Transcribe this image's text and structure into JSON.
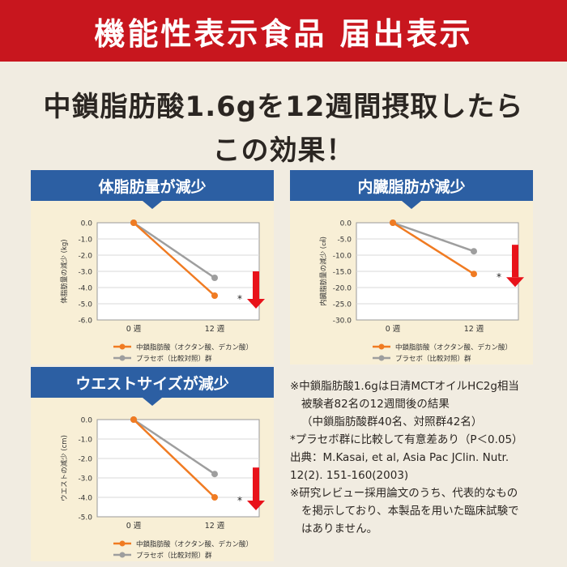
{
  "banner": {
    "title": "機能性表示食品 届出表示"
  },
  "headline": {
    "line1": "中鎖脂肪酸1.6gを12週間摂取したら",
    "line2": "この効果！"
  },
  "colors": {
    "banner": "#c8161e",
    "panel_header": "#2c5fa3",
    "mcfa": "#f07b22",
    "placebo": "#9e9e9e",
    "arrow": "#e8121a"
  },
  "chart_data": [
    {
      "type": "line",
      "title": "体脂肪量が減少",
      "ylabel": "体脂肪量の減少 (kg)",
      "ylim": [
        -6.0,
        0.0
      ],
      "yticks": [
        0.0,
        -1.0,
        -2.0,
        -3.0,
        -4.0,
        -5.0,
        -6.0
      ],
      "ytick_labels": [
        "0.0",
        "-1.0",
        "-2.0",
        "-3.0",
        "-4.0",
        "-5.0",
        "-6.0"
      ],
      "categories": [
        "0 週",
        "12 週"
      ],
      "series": [
        {
          "name": "中鎖脂肪酸（オクタン酸、デカン酸）",
          "values": [
            0.0,
            -4.5
          ]
        },
        {
          "name": "プラセボ（比較対照）群",
          "values": [
            0.0,
            -3.4
          ]
        }
      ],
      "annotation": "*"
    },
    {
      "type": "line",
      "title": "内臓脂肪が減少",
      "ylabel": "内臓脂肪量の減少 (㎠)",
      "ylim": [
        -30.0,
        0.0
      ],
      "yticks": [
        0.0,
        -5.0,
        -10.0,
        -15.0,
        -20.0,
        -25.0,
        -30.0
      ],
      "ytick_labels": [
        "0.0",
        "-5.0",
        "-10.0",
        "-15.0",
        "-20.0",
        "-25.0",
        "-30.0"
      ],
      "categories": [
        "0 週",
        "12 週"
      ],
      "series": [
        {
          "name": "中鎖脂肪酸（オクタン酸、デカン酸）",
          "values": [
            0.0,
            -15.8
          ]
        },
        {
          "name": "プラセボ（比較対照）群",
          "values": [
            0.0,
            -8.8
          ]
        }
      ],
      "annotation": "*"
    },
    {
      "type": "line",
      "title": "ウエストサイズが減少",
      "ylabel": "ウエストの減少 (cm)",
      "ylim": [
        -5.0,
        0.0
      ],
      "yticks": [
        0.0,
        -1.0,
        -2.0,
        -3.0,
        -4.0,
        -5.0
      ],
      "ytick_labels": [
        "0.0",
        "-1.0",
        "-2.0",
        "-3.0",
        "-4.0",
        "-5.0"
      ],
      "categories": [
        "0 週",
        "12 週"
      ],
      "series": [
        {
          "name": "中鎖脂肪酸（オクタン酸、デカン酸）",
          "values": [
            0.0,
            -4.0
          ]
        },
        {
          "name": "プラセボ（比較対照）群",
          "values": [
            0.0,
            -2.8
          ]
        }
      ],
      "annotation": "*"
    }
  ],
  "notes": [
    "※中鎖脂肪酸1.6gは日清MCTオイルHC2g相当",
    "被験者82名の12週間後の結果",
    "（中鎖脂肪酸群40名、対照群42名）",
    "*プラセボ群に比較して有意差あり（P＜0.05）",
    "出典：M.Kasai, et al, Asia Pac JClin. Nutr.",
    "12(2). 151-160(2003)",
    "※研究レビュー採用論文のうち、代表的なもの",
    "を掲示しており、本製品を用いた臨床試験で",
    "はありません。"
  ]
}
